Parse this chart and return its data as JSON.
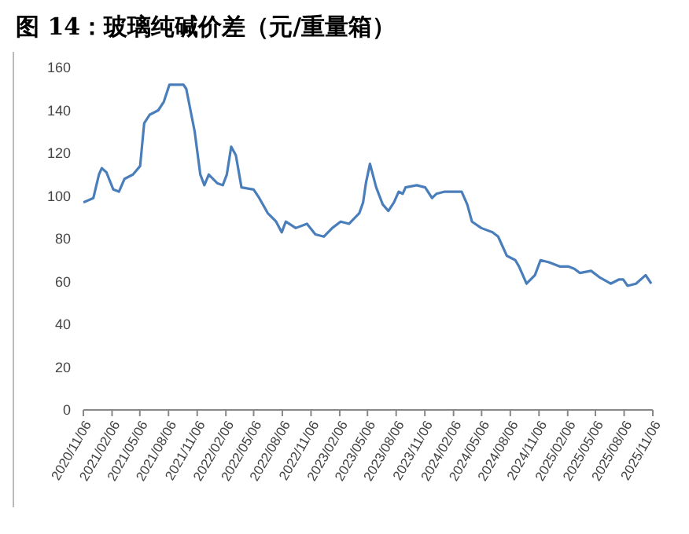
{
  "chart_data": {
    "type": "line",
    "title": "图 14：玻璃纯碱价差（元/重量箱）",
    "x": [
      "2020-11-06",
      "2020-12-08",
      "2020-12-26",
      "2021-01-04",
      "2021-01-19",
      "2021-02-10",
      "2021-02-28",
      "2021-03-18",
      "2021-04-14",
      "2021-05-07",
      "2021-05-20",
      "2021-06-07",
      "2021-07-04",
      "2021-07-22",
      "2021-08-09",
      "2021-09-23",
      "2021-10-02",
      "2021-10-29",
      "2021-11-16",
      "2021-11-29",
      "2021-12-13",
      "2022-01-09",
      "2022-01-27",
      "2022-02-09",
      "2022-02-23",
      "2022-03-10",
      "2022-03-28",
      "2022-05-06",
      "2022-05-24",
      "2022-06-20",
      "2022-07-17",
      "2022-08-04",
      "2022-08-17",
      "2022-09-18",
      "2022-10-24",
      "2022-11-20",
      "2022-12-17",
      "2023-01-13",
      "2023-02-09",
      "2023-03-08",
      "2023-04-10",
      "2023-04-22",
      "2023-05-01",
      "2023-05-14",
      "2023-06-03",
      "2023-06-24",
      "2023-07-12",
      "2023-07-30",
      "2023-08-14",
      "2023-08-27",
      "2023-09-05",
      "2023-10-11",
      "2023-11-07",
      "2023-11-29",
      "2023-12-13",
      "2024-01-09",
      "2024-02-14",
      "2024-03-03",
      "2024-03-21",
      "2024-04-05",
      "2024-05-05",
      "2024-06-10",
      "2024-06-28",
      "2024-07-26",
      "2024-08-22",
      "2024-09-03",
      "2024-09-27",
      "2024-10-24",
      "2024-11-11",
      "2024-12-08",
      "2025-01-13",
      "2025-02-09",
      "2025-02-27",
      "2025-03-17",
      "2025-04-22",
      "2025-05-19",
      "2025-06-24",
      "2025-07-21",
      "2025-08-03",
      "2025-08-17",
      "2025-09-13",
      "2025-10-14",
      "2025-11-01"
    ],
    "series": [
      {
        "color": "#4a7ebb",
        "values": [
          97,
          99,
          110,
          113,
          111,
          103,
          102,
          108,
          110,
          114,
          134,
          138,
          140,
          144,
          152,
          152,
          150,
          130,
          110,
          105,
          110,
          106,
          105,
          110,
          123,
          119,
          104,
          103,
          99,
          92,
          88,
          83,
          88,
          85,
          87,
          82,
          81,
          85,
          88,
          87,
          92,
          97,
          106,
          115,
          104,
          96,
          93,
          97,
          102,
          101,
          104,
          105,
          104,
          99,
          101,
          102,
          102,
          102,
          96,
          88,
          85,
          83,
          81,
          72,
          70,
          67,
          59,
          63,
          70,
          69,
          67,
          67,
          66,
          64,
          65,
          62,
          59,
          61,
          61,
          58,
          59,
          63,
          59
        ]
      }
    ],
    "xlim": [
      "2020-11-06",
      "2025-11-06"
    ],
    "xticks": [
      {
        "value": "2020-11-06",
        "label": "2020/11/06"
      },
      {
        "value": "2021-02-06",
        "label": "2021/02/06"
      },
      {
        "value": "2021-05-06",
        "label": "2021/05/06"
      },
      {
        "value": "2021-08-06",
        "label": "2021/08/06"
      },
      {
        "value": "2021-11-06",
        "label": "2021/11/06"
      },
      {
        "value": "2022-02-06",
        "label": "2022/02/06"
      },
      {
        "value": "2022-05-06",
        "label": "2022/05/06"
      },
      {
        "value": "2022-08-06",
        "label": "2022/08/06"
      },
      {
        "value": "2022-11-06",
        "label": "2022/11/06"
      },
      {
        "value": "2023-02-06",
        "label": "2023/02/06"
      },
      {
        "value": "2023-05-06",
        "label": "2023/05/06"
      },
      {
        "value": "2023-08-06",
        "label": "2023/08/06"
      },
      {
        "value": "2023-11-06",
        "label": "2023/11/06"
      },
      {
        "value": "2024-02-06",
        "label": "2024/02/06"
      },
      {
        "value": "2024-05-06",
        "label": "2024/05/06"
      },
      {
        "value": "2024-08-06",
        "label": "2024/08/06"
      },
      {
        "value": "2024-11-06",
        "label": "2024/11/06"
      },
      {
        "value": "2025-02-06",
        "label": "2025/02/06"
      },
      {
        "value": "2025-05-06",
        "label": "2025/05/06"
      },
      {
        "value": "2025-08-06",
        "label": "2025/08/06"
      },
      {
        "value": "2025-11-06",
        "label": "2025/11/06"
      }
    ],
    "ylim": [
      0,
      160
    ],
    "yticks": [
      0,
      20,
      40,
      60,
      80,
      100,
      120,
      140,
      160
    ],
    "grid": false,
    "legend": false,
    "marker": "none",
    "line_style": "solid"
  }
}
